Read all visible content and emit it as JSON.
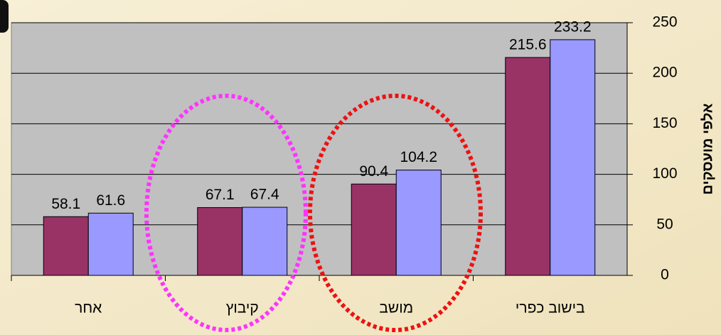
{
  "chart_data": {
    "type": "bar",
    "categories": [
      "אחר",
      "קיבוץ",
      "מושב",
      "בישוב כפרי"
    ],
    "series": [
      {
        "color": "#993366",
        "values": [
          58.1,
          67.1,
          90.4,
          215.6
        ]
      },
      {
        "color": "#9999ff",
        "values": [
          61.6,
          67.4,
          104.2,
          233.2
        ]
      }
    ],
    "y_label": "אלפי מועסקים",
    "y_axis_side": "right",
    "ylim": [
      0,
      250
    ],
    "yticks": [
      0,
      50,
      100,
      150,
      200,
      250
    ],
    "grid": true
  }
}
